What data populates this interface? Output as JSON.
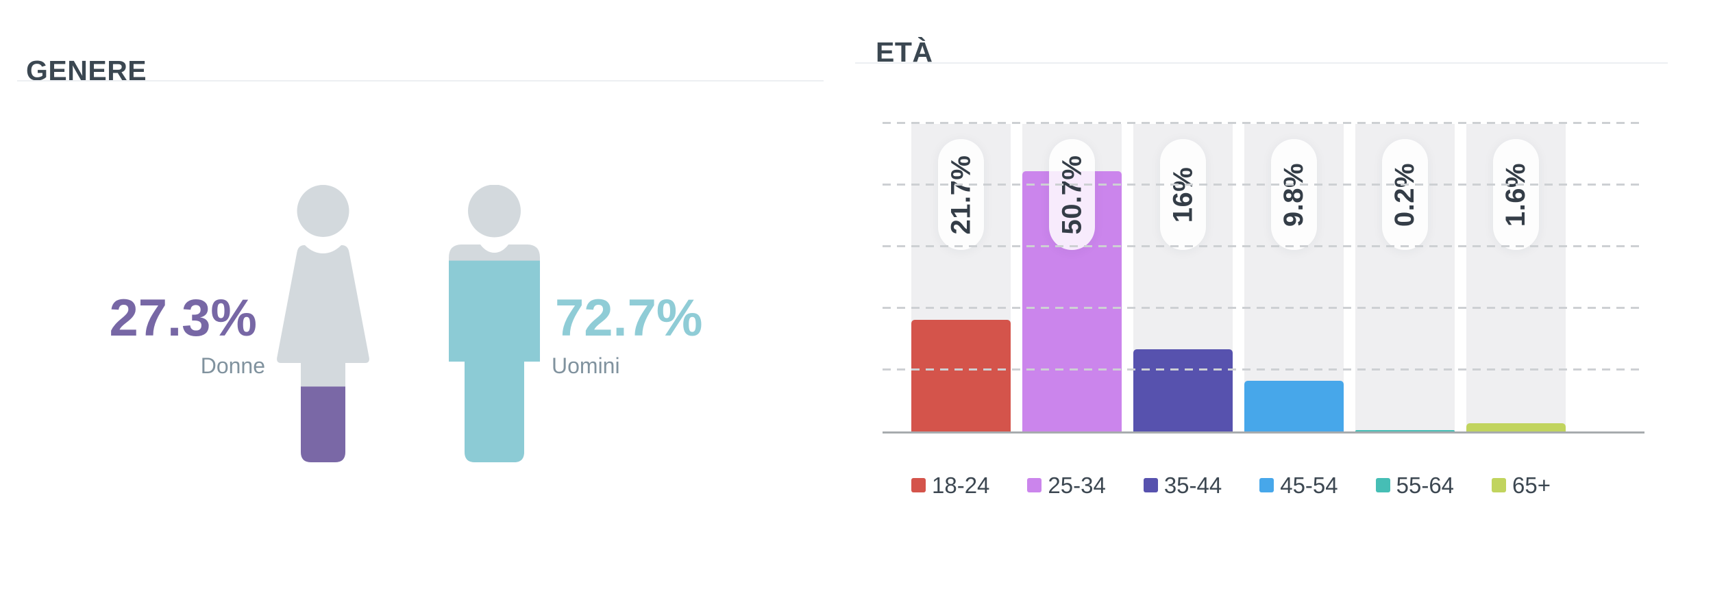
{
  "genere": {
    "title": "GENERE",
    "donne": {
      "value_label": "27.3%",
      "pct": 27.3,
      "label": "Donne",
      "accent": "#7767a5",
      "fill": "#7a68a6"
    },
    "uomini": {
      "value_label": "72.7%",
      "pct": 72.7,
      "label": "Uomini",
      "accent": "#8fccd6",
      "fill": "#8ccbd5"
    },
    "silhouette_gray": "#d3d9dd"
  },
  "eta": {
    "title": "ETÀ"
  },
  "chart_data": [
    {
      "type": "pictogram",
      "title": "GENERE",
      "categories": [
        "Donne",
        "Uomini"
      ],
      "values": [
        27.3,
        72.7
      ],
      "unit": "percent",
      "colors": [
        "#7a68a6",
        "#8ccbd5"
      ],
      "note": "female and male silhouettes filled from bottom by percentage"
    },
    {
      "type": "bar",
      "title": "ETÀ",
      "categories": [
        "18-24",
        "25-34",
        "35-44",
        "45-54",
        "55-64",
        "65+"
      ],
      "values": [
        21.7,
        50.7,
        16,
        9.8,
        0.2,
        1.6
      ],
      "value_labels": [
        "21.7%",
        "50.7%",
        "16%",
        "9.8%",
        "0.2%",
        "1.6%"
      ],
      "colors": [
        "#d4544b",
        "#cb85ec",
        "#5752ae",
        "#47a7ea",
        "#46beb5",
        "#c1d45e"
      ],
      "unit": "percent",
      "ylim": [
        0,
        60
      ],
      "xlabel": "",
      "ylabel": "",
      "gridlines": "dashed-horizontal",
      "column_background": "#efeff1",
      "legend_position": "bottom",
      "bar_value_labels_rotated": true
    }
  ]
}
